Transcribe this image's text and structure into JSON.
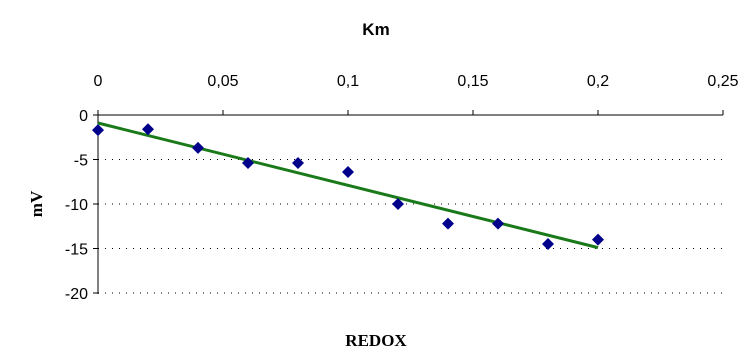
{
  "chart_data": {
    "type": "scatter",
    "x_axis_title": "Km",
    "x_axis_position": "top",
    "y_axis_title": "mV",
    "bottom_title": "REDOX",
    "xlim": [
      0,
      0.25
    ],
    "ylim": [
      -20,
      0
    ],
    "x_ticks": [
      0,
      0.05,
      0.1,
      0.15,
      0.2,
      0.25
    ],
    "x_tick_labels": [
      "0",
      "0,05",
      "0,1",
      "0,15",
      "0,2",
      "0,25"
    ],
    "y_ticks": [
      0,
      -5,
      -10,
      -15,
      -20
    ],
    "y_tick_labels": [
      "0",
      "-5",
      "-10",
      "-15",
      "-20"
    ],
    "grid": "horizontal dotted",
    "legend": "none",
    "points": [
      {
        "x": 0.0,
        "y": -1.7
      },
      {
        "x": 0.02,
        "y": -1.6
      },
      {
        "x": 0.04,
        "y": -3.7
      },
      {
        "x": 0.06,
        "y": -5.4
      },
      {
        "x": 0.08,
        "y": -5.4
      },
      {
        "x": 0.1,
        "y": -6.4
      },
      {
        "x": 0.12,
        "y": -10.0
      },
      {
        "x": 0.14,
        "y": -12.2
      },
      {
        "x": 0.16,
        "y": -12.2
      },
      {
        "x": 0.18,
        "y": -14.5
      },
      {
        "x": 0.2,
        "y": -14.0
      }
    ],
    "trendline": {
      "type": "linear",
      "x": [
        0.0,
        0.2
      ],
      "y": [
        -0.9,
        -14.9
      ]
    },
    "colors": {
      "points": "#00008B",
      "trendline": "#1a7a1a",
      "axes": "#000000",
      "grid": "#000000"
    }
  }
}
